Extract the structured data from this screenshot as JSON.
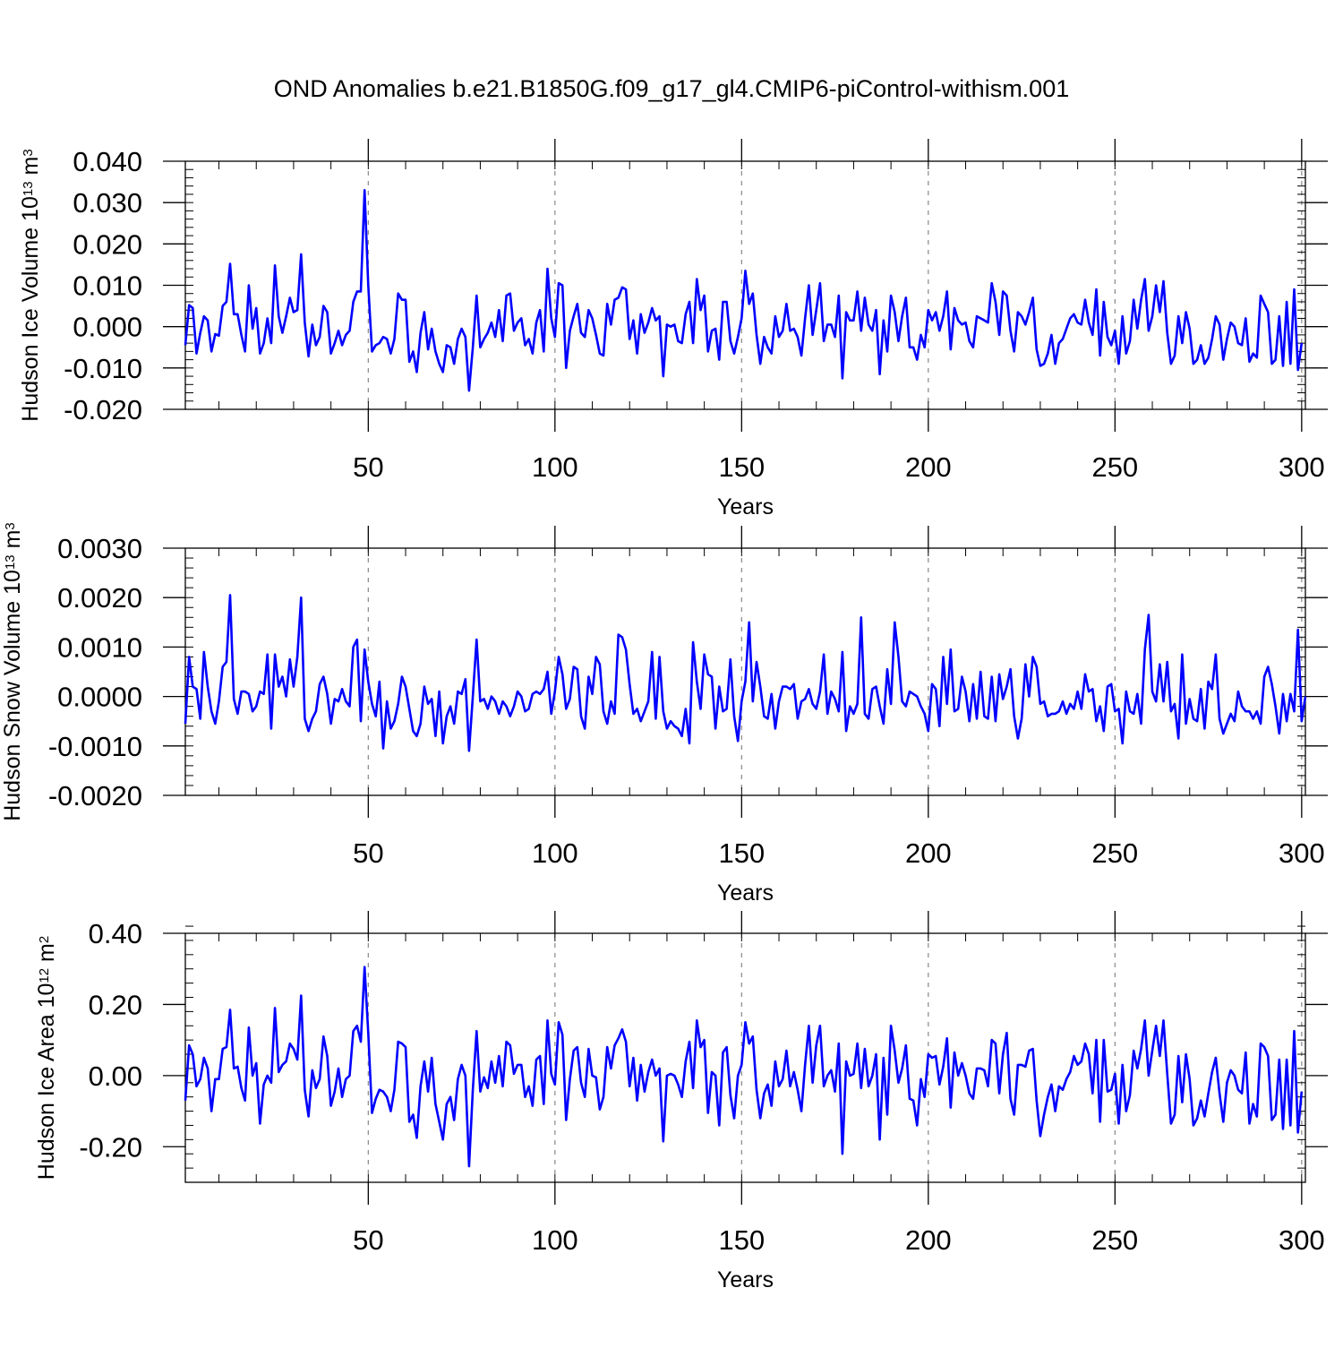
{
  "title": "OND Anomalies b.e21.B1850G.f09_g17_gl4.CMIP6-piControl-withism.001",
  "colors": {
    "series": "#0000ff",
    "axis": "#000000",
    "grid": "#888888"
  },
  "chart_data": [
    {
      "type": "line",
      "title": "OND Anomalies b.e21.B1850G.f09_g17_gl4.CMIP6-piControl-withism.001",
      "xlabel": "Years",
      "ylabel": "Hudson Ice Volume 10",
      "ylabel_exp": "13",
      "ylabel_unit": " m",
      "ylabel_unit_exp": "3",
      "xlim": [
        1,
        301
      ],
      "ylim": [
        -0.02,
        0.04
      ],
      "x_ticks": [
        50,
        100,
        150,
        200,
        250,
        300
      ],
      "x_tick_labels": [
        "50",
        "100",
        "150",
        "200",
        "250",
        "300"
      ],
      "y_ticks": [
        -0.02,
        -0.01,
        0,
        0.01,
        0.02,
        0.03,
        0.04
      ],
      "y_tick_labels": [
        "-0.020",
        "-0.010",
        "0.000",
        "0.010",
        "0.020",
        "0.030",
        "0.040"
      ],
      "y_minor_step": 0.002,
      "x_minor_step": 10,
      "grid": "dashed vertical at major x ticks",
      "x_start": 1,
      "values": [
        -0.0045,
        0.0052,
        0.0045,
        -0.0065,
        -0.0015,
        0.0025,
        0.0015,
        -0.006,
        -0.0018,
        -0.0022,
        0.005,
        0.006,
        0.0152,
        0.003,
        0.003,
        -0.002,
        -0.006,
        0.01,
        -0.0005,
        0.0045,
        -0.0065,
        -0.004,
        0.002,
        -0.004,
        0.0148,
        0.0025,
        -0.0015,
        0.0025,
        0.007,
        0.0035,
        0.004,
        0.0175,
        0.001,
        -0.0072,
        0.0005,
        -0.0045,
        -0.0025,
        0.005,
        0.0035,
        -0.0065,
        -0.004,
        -0.001,
        -0.0045,
        -0.002,
        -0.001,
        0.006,
        0.0085,
        0.0085,
        0.033,
        0.01,
        -0.006,
        -0.0045,
        -0.004,
        -0.0025,
        -0.003,
        -0.0065,
        -0.003,
        0.008,
        0.0065,
        0.0065,
        -0.0085,
        -0.006,
        -0.011,
        -0.0015,
        0.0035,
        -0.0055,
        -0.0005,
        -0.006,
        -0.009,
        -0.011,
        -0.0045,
        -0.005,
        -0.009,
        -0.003,
        -0.0005,
        -0.0025,
        -0.0155,
        -0.005,
        0.0075,
        -0.005,
        -0.003,
        -0.0015,
        0.001,
        -0.0025,
        0.004,
        -0.0035,
        0.0075,
        0.008,
        -0.001,
        0.001,
        0.002,
        -0.0045,
        -0.003,
        -0.0065,
        0.001,
        0.004,
        -0.006,
        0.014,
        0.002,
        -0.0025,
        0.0105,
        0.01,
        -0.01,
        -0.001,
        0.0025,
        0.0055,
        -0.0015,
        -0.0025,
        0.004,
        0.002,
        -0.002,
        -0.0065,
        -0.007,
        0.0055,
        0.0005,
        0.0065,
        0.007,
        0.0095,
        0.009,
        -0.003,
        0.0015,
        -0.0065,
        0.003,
        -0.0015,
        0.001,
        0.0045,
        0.0015,
        0.0025,
        -0.012,
        0.0005,
        0.0,
        0.0005,
        -0.0035,
        -0.004,
        0.003,
        0.006,
        -0.004,
        0.0115,
        0.004,
        0.0075,
        -0.006,
        -0.001,
        -0.0005,
        -0.008,
        0.006,
        0.006,
        -0.0035,
        -0.0065,
        -0.0025,
        0.002,
        0.0135,
        0.0055,
        0.008,
        -0.002,
        -0.009,
        -0.0025,
        -0.005,
        -0.0065,
        0.0025,
        -0.0025,
        -0.001,
        0.0055,
        -0.001,
        -0.0005,
        -0.0025,
        -0.007,
        0.002,
        0.01,
        -0.002,
        0.004,
        0.0105,
        -0.0035,
        0.0005,
        0.0005,
        -0.0025,
        0.0075,
        -0.0125,
        0.0035,
        0.0015,
        0.0015,
        0.0085,
        -0.001,
        0.007,
        0.0005,
        -0.001,
        0.004,
        -0.0115,
        0.0015,
        -0.006,
        0.0075,
        0.0035,
        -0.0035,
        0.0025,
        0.007,
        -0.005,
        -0.005,
        -0.008,
        -0.002,
        -0.005,
        0.004,
        0.0015,
        0.0035,
        -0.001,
        0.0025,
        0.0085,
        -0.0055,
        0.0045,
        0.0015,
        0.0005,
        0.001,
        -0.0035,
        -0.005,
        0.0025,
        0.002,
        0.0015,
        0.001,
        0.0105,
        0.006,
        -0.002,
        0.0085,
        0.0075,
        -0.001,
        -0.006,
        0.0035,
        0.0025,
        0.0005,
        0.0035,
        0.007,
        -0.0055,
        -0.0095,
        -0.009,
        -0.0065,
        -0.002,
        -0.009,
        -0.004,
        -0.003,
        -0.0005,
        0.002,
        0.003,
        0.001,
        0.0005,
        0.0065,
        0.001,
        -0.002,
        0.009,
        -0.007,
        0.006,
        -0.0025,
        -0.0045,
        -0.001,
        -0.009,
        0.0025,
        -0.0065,
        -0.0035,
        0.0065,
        -0.0005,
        0.0065,
        0.0115,
        -0.001,
        0.0025,
        0.01,
        0.0035,
        0.011,
        -0.0015,
        -0.009,
        -0.007,
        0.0025,
        -0.004,
        0.0035,
        -0.0005,
        -0.009,
        -0.008,
        -0.0045,
        -0.009,
        -0.0075,
        -0.003,
        0.0025,
        0.0005,
        -0.008,
        -0.003,
        0.001,
        0.0,
        -0.004,
        -0.0045,
        0.002,
        -0.0085,
        -0.0065,
        -0.0075,
        0.0075,
        0.0055,
        0.0035,
        -0.009,
        -0.008,
        0.0025,
        -0.0095,
        0.006,
        -0.009,
        0.009,
        -0.0105,
        -0.004
      ]
    },
    {
      "type": "line",
      "xlabel": "Years",
      "ylabel": "Hudson Snow Volume 10",
      "ylabel_exp": "13",
      "ylabel_unit": " m",
      "ylabel_unit_exp": "3",
      "xlim": [
        1,
        301
      ],
      "ylim": [
        -0.002,
        0.003
      ],
      "x_ticks": [
        50,
        100,
        150,
        200,
        250,
        300
      ],
      "x_tick_labels": [
        "50",
        "100",
        "150",
        "200",
        "250",
        "300"
      ],
      "y_ticks": [
        -0.002,
        -0.001,
        0,
        0.001,
        0.002,
        0.003
      ],
      "y_tick_labels": [
        "-0.0020",
        "-0.0010",
        "0.0000",
        "0.0010",
        "0.0020",
        "0.0030"
      ],
      "y_minor_step": 0.0002,
      "x_minor_step": 10,
      "grid": "dashed vertical at major x ticks",
      "x_start": 1,
      "values": [
        -0.00055,
        0.0008,
        0.0002,
        0.00015,
        -0.00045,
        0.0009,
        0.0002,
        -0.0003,
        -0.00055,
        -0.0001,
        0.0006,
        0.0007,
        0.00205,
        -5e-05,
        -0.00035,
        0.0001,
        0.0001,
        5e-05,
        -0.0003,
        -0.0002,
        0.0001,
        5e-05,
        0.00085,
        -0.00065,
        0.00085,
        0.0002,
        0.0004,
        0.0,
        0.00075,
        0.0002,
        0.0008,
        0.002,
        -0.00045,
        -0.0007,
        -0.00045,
        -0.0003,
        0.00025,
        0.0004,
        5e-05,
        -0.00055,
        -5e-05,
        -0.0001,
        0.00015,
        -0.0001,
        -0.0002,
        0.001,
        0.00115,
        -0.0005,
        0.00095,
        0.0003,
        -0.00015,
        -0.0004,
        0.0003,
        -0.00105,
        -0.0001,
        -0.00065,
        -0.0005,
        -0.00015,
        0.0004,
        0.0002,
        -0.00025,
        -0.0007,
        -0.0008,
        -0.00055,
        0.0002,
        -0.00015,
        -5e-05,
        -0.0008,
        0.0001,
        -0.00095,
        -0.0004,
        -0.0002,
        -0.00055,
        0.0001,
        5e-05,
        0.00035,
        -0.0011,
        0.0,
        0.00115,
        -0.0001,
        -5e-05,
        -0.00025,
        0.0,
        -0.0001,
        -0.00035,
        -0.0001,
        -0.0002,
        -0.0004,
        -0.0002,
        0.0001,
        0.0,
        -0.0003,
        -0.00025,
        5e-05,
        0.0001,
        5e-05,
        0.00015,
        0.0005,
        -0.00035,
        0.0001,
        0.0008,
        0.00045,
        -0.00025,
        -5e-05,
        0.0006,
        0.00055,
        -0.0004,
        -0.00065,
        0.0004,
        5e-05,
        0.0008,
        0.00065,
        -0.0003,
        -0.00055,
        -0.0001,
        -0.00035,
        0.00125,
        0.0012,
        0.00095,
        0.00025,
        -0.00035,
        -0.00025,
        -0.0005,
        -0.0003,
        -0.0001,
        0.0009,
        -0.00045,
        0.0008,
        -0.0003,
        -0.00065,
        -0.0005,
        -0.0006,
        -0.00065,
        -0.0008,
        -0.00025,
        -0.00095,
        0.0011,
        0.0003,
        -0.00025,
        0.00085,
        0.00045,
        0.0004,
        -0.00065,
        0.0002,
        -0.0003,
        -0.00025,
        0.00075,
        -0.0004,
        -0.0009,
        -0.0001,
        0.0003,
        0.0015,
        -0.0001,
        0.0007,
        0.0002,
        -0.0004,
        -0.00045,
        5e-05,
        -0.00065,
        -0.0001,
        0.0002,
        0.0002,
        0.00015,
        0.00025,
        -0.00045,
        -0.0001,
        -5e-05,
        0.00015,
        -0.00015,
        -0.00025,
        0.0001,
        0.00085,
        -0.00035,
        0.0001,
        -5e-05,
        -0.0003,
        0.0009,
        -0.0007,
        -0.0002,
        -0.00035,
        -0.00015,
        0.0016,
        -0.00035,
        -0.00045,
        0.00015,
        0.0002,
        -0.0002,
        -0.00055,
        0.00055,
        -0.00015,
        0.0015,
        0.0008,
        -0.0001,
        -0.0002,
        0.0001,
        5e-05,
        0.0,
        -0.0002,
        -0.00035,
        -0.0007,
        0.00025,
        0.00015,
        -0.0006,
        0.0008,
        -0.00015,
        0.00095,
        -0.0003,
        -0.00025,
        0.0004,
        0.0001,
        -0.0005,
        0.00025,
        -0.00045,
        0.0005,
        -0.0004,
        -0.00045,
        0.0004,
        -0.0005,
        0.00045,
        -5e-05,
        0.0002,
        0.00055,
        -0.0004,
        -0.00085,
        -0.00045,
        0.00065,
        0.0,
        0.0008,
        0.0006,
        -0.00015,
        -0.0001,
        -0.0004,
        -0.00035,
        -0.00035,
        -0.0003,
        -0.0001,
        -0.00035,
        -0.00015,
        -0.00025,
        0.0001,
        -0.00025,
        0.00045,
        0.0001,
        0.00015,
        -0.0005,
        -0.0002,
        -0.0007,
        0.0002,
        0.00025,
        -0.0003,
        -0.00025,
        -0.00095,
        0.0001,
        -0.0003,
        -0.00035,
        5e-05,
        -0.00055,
        0.00095,
        0.00165,
        0.0001,
        -0.0001,
        0.00065,
        -0.0001,
        0.0007,
        -0.0003,
        -0.00015,
        -0.00085,
        0.00085,
        -0.00055,
        -5e-05,
        -0.00045,
        -0.0005,
        0.00015,
        -0.00065,
        0.0003,
        0.00015,
        0.00085,
        -0.00045,
        -0.00075,
        -0.00055,
        -0.00035,
        -0.0005,
        0.0001,
        -0.0002,
        -0.0003,
        -0.0003,
        -0.00045,
        -0.0003,
        -0.00055,
        0.0004,
        0.0006,
        0.00025,
        -0.0002,
        -0.00075,
        5e-05,
        -0.0005,
        5e-05,
        -0.0003,
        0.00135,
        -0.0005,
        0.0
      ]
    },
    {
      "type": "line",
      "xlabel": "Years",
      "ylabel": "Hudson Ice Area 10",
      "ylabel_exp": "12",
      "ylabel_unit": " m",
      "ylabel_unit_exp": "2",
      "xlim": [
        1,
        301
      ],
      "ylim": [
        -0.3,
        0.4
      ],
      "x_ticks": [
        50,
        100,
        150,
        200,
        250,
        300
      ],
      "x_tick_labels": [
        "50",
        "100",
        "150",
        "200",
        "250",
        "300"
      ],
      "y_ticks": [
        -0.2,
        0,
        0.2,
        0.4
      ],
      "y_tick_labels": [
        "-0.20",
        "0.00",
        "0.20",
        "0.40"
      ],
      "y_minor_step": 0.04,
      "x_minor_step": 10,
      "grid": "dashed vertical at major x ticks",
      "x_start": 1,
      "values": [
        -0.07,
        0.085,
        0.06,
        -0.03,
        -0.01,
        0.05,
        0.02,
        -0.1,
        -0.01,
        -0.01,
        0.075,
        0.08,
        0.185,
        0.02,
        0.025,
        -0.035,
        -0.07,
        0.135,
        0.0,
        0.035,
        -0.135,
        -0.025,
        0.0,
        -0.02,
        0.19,
        0.01,
        0.03,
        0.04,
        0.09,
        0.075,
        0.045,
        0.225,
        -0.04,
        -0.115,
        0.015,
        -0.035,
        -0.01,
        0.11,
        0.055,
        -0.085,
        -0.045,
        0.02,
        -0.06,
        -0.01,
        0.0,
        0.125,
        0.14,
        0.095,
        0.305,
        0.12,
        -0.105,
        -0.065,
        -0.04,
        -0.045,
        -0.06,
        -0.1,
        -0.04,
        0.095,
        0.09,
        0.08,
        -0.13,
        -0.11,
        -0.175,
        -0.03,
        0.04,
        -0.045,
        0.05,
        -0.08,
        -0.13,
        -0.18,
        -0.08,
        -0.06,
        -0.125,
        -0.01,
        0.03,
        0.0,
        -0.255,
        -0.04,
        0.125,
        -0.045,
        -0.005,
        -0.035,
        0.04,
        -0.02,
        0.055,
        -0.03,
        0.095,
        0.085,
        0.005,
        0.03,
        0.03,
        -0.06,
        -0.03,
        -0.085,
        0.045,
        0.055,
        -0.08,
        0.155,
        0.005,
        -0.025,
        0.15,
        0.115,
        -0.125,
        -0.01,
        0.07,
        0.08,
        -0.02,
        -0.06,
        0.075,
        0.0,
        -0.005,
        -0.095,
        -0.06,
        0.08,
        0.02,
        0.085,
        0.105,
        0.13,
        0.095,
        -0.03,
        0.05,
        -0.07,
        0.03,
        -0.045,
        0.01,
        0.045,
        0.0,
        0.02,
        -0.185,
        0.0,
        0.005,
        0.0,
        -0.025,
        -0.06,
        0.04,
        0.095,
        -0.035,
        0.155,
        0.08,
        0.1,
        -0.105,
        0.01,
        0.0,
        -0.14,
        0.065,
        0.08,
        -0.055,
        -0.12,
        0.0,
        0.03,
        0.15,
        0.09,
        0.11,
        -0.04,
        -0.12,
        -0.05,
        -0.025,
        -0.085,
        0.04,
        -0.03,
        -0.01,
        0.07,
        -0.03,
        0.01,
        -0.04,
        -0.1,
        0.03,
        0.14,
        -0.02,
        0.085,
        0.14,
        -0.03,
        0.0,
        0.015,
        -0.045,
        0.09,
        -0.22,
        0.04,
        0.0,
        0.005,
        0.09,
        -0.035,
        0.075,
        -0.03,
        0.0,
        0.06,
        -0.18,
        0.05,
        -0.11,
        0.14,
        0.07,
        -0.02,
        0.02,
        0.085,
        -0.065,
        -0.07,
        -0.14,
        -0.01,
        -0.06,
        0.06,
        0.05,
        0.055,
        -0.025,
        0.025,
        0.105,
        -0.09,
        0.065,
        0.0,
        0.035,
        0.0,
        -0.05,
        -0.065,
        0.02,
        0.02,
        0.015,
        -0.03,
        0.1,
        0.09,
        -0.05,
        0.06,
        0.12,
        -0.065,
        -0.11,
        0.03,
        0.03,
        0.025,
        0.07,
        0.075,
        -0.07,
        -0.17,
        -0.11,
        -0.06,
        -0.025,
        -0.1,
        -0.03,
        -0.04,
        -0.01,
        0.01,
        0.055,
        0.03,
        0.04,
        0.09,
        0.06,
        -0.05,
        0.1,
        -0.13,
        0.1,
        -0.045,
        -0.04,
        0.005,
        -0.135,
        0.03,
        -0.1,
        -0.055,
        0.07,
        0.02,
        0.075,
        0.155,
        0.0,
        0.07,
        0.14,
        0.055,
        0.155,
        0.005,
        -0.135,
        -0.11,
        0.055,
        -0.075,
        0.06,
        -0.01,
        -0.14,
        -0.12,
        -0.07,
        -0.115,
        -0.05,
        0.01,
        0.05,
        -0.05,
        -0.13,
        -0.02,
        0.015,
        0.0,
        -0.04,
        -0.05,
        0.065,
        -0.135,
        -0.08,
        -0.115,
        0.09,
        0.08,
        0.055,
        -0.125,
        -0.11,
        0.045,
        -0.15,
        0.045,
        -0.14,
        0.125,
        -0.16,
        -0.045
      ]
    }
  ]
}
